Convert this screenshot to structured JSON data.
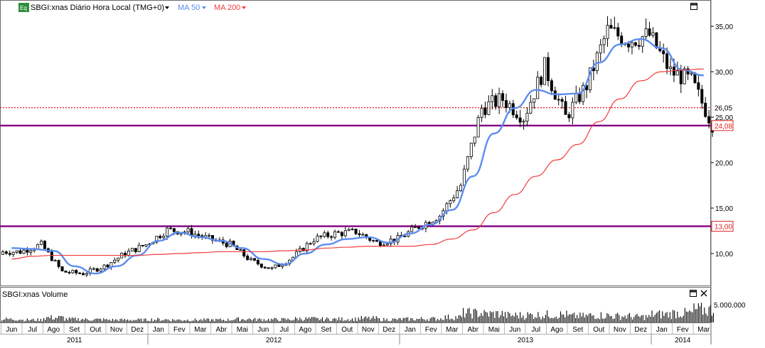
{
  "header": {
    "eq_badge": "Eq",
    "symbol_label": "SBGI:xnas Diário Hora Local (TMG+0)",
    "ma50_label": "MA 50",
    "ma200_label": "MA 200"
  },
  "volume_panel": {
    "title": "SBGI:xnas Volume",
    "tick_label": "5.000.000"
  },
  "colors": {
    "candle": "#000000",
    "ma50": "#5b8cf0",
    "ma200": "#f03c3c",
    "support_line": "#800080",
    "price_tag_red": "#e02020",
    "eq_badge": "#2d8f3c"
  },
  "chart_data": [
    {
      "type": "line",
      "title": "",
      "y_axis": {
        "ticks": [
          "10,00",
          "15,00",
          "20,00",
          "25,00",
          "30,00",
          "35,00"
        ],
        "range": [
          5.8,
          37.8
        ],
        "position": "right"
      },
      "x_axis": {
        "months": [
          "Jun",
          "Jul",
          "Ago",
          "Set",
          "Out",
          "Nov",
          "Dez",
          "Jan",
          "Fev",
          "Mar",
          "Abr",
          "Mai",
          "Jun",
          "Jul",
          "Ago",
          "Set",
          "Out",
          "Nov",
          "Dez",
          "Jan",
          "Fev",
          "Mar",
          "Abr",
          "Mai",
          "Jun",
          "Jul",
          "Ago",
          "Set",
          "Out",
          "Nov",
          "Dez",
          "Jan",
          "Fev",
          "Mar"
        ],
        "years": [
          "2011",
          "2012",
          "2013",
          "2014"
        ]
      },
      "price_months": [
        {
          "month": "Jun 2011",
          "close": 10.2
        },
        {
          "month": "Jul 2011",
          "close": 11.0
        },
        {
          "month": "Ago 2011",
          "close": 8.0
        },
        {
          "month": "Set 2011",
          "close": 7.8
        },
        {
          "month": "Out 2011",
          "close": 8.6
        },
        {
          "month": "Nov 2011",
          "close": 10.0
        },
        {
          "month": "Dez 2011",
          "close": 11.0
        },
        {
          "month": "Jan 2012",
          "close": 12.6
        },
        {
          "month": "Fev 2012",
          "close": 12.4
        },
        {
          "month": "Mar 2012",
          "close": 11.6
        },
        {
          "month": "Abr 2012",
          "close": 11.0
        },
        {
          "month": "Mai 2012",
          "close": 9.2
        },
        {
          "month": "Jun 2012",
          "close": 8.3
        },
        {
          "month": "Jul 2012",
          "close": 9.6
        },
        {
          "month": "Ago 2012",
          "close": 11.6
        },
        {
          "month": "Set 2012",
          "close": 12.2
        },
        {
          "month": "Out 2012",
          "close": 12.4
        },
        {
          "month": "Nov 2012",
          "close": 11.2
        },
        {
          "month": "Dez 2012",
          "close": 11.6
        },
        {
          "month": "Jan 2013",
          "close": 13.0
        },
        {
          "month": "Fev 2013",
          "close": 14.2
        },
        {
          "month": "Mar 2013",
          "close": 17.5
        },
        {
          "month": "Abr 2013",
          "close": 26.0
        },
        {
          "month": "Mai 2013",
          "close": 27.0
        },
        {
          "month": "Jun 2013",
          "close": 25.0
        },
        {
          "month": "Jul 2013",
          "close": 30.5
        },
        {
          "month": "Ago 2013",
          "close": 25.0
        },
        {
          "month": "Set 2013",
          "close": 28.5
        },
        {
          "month": "Out 2013",
          "close": 34.5
        },
        {
          "month": "Nov 2013",
          "close": 33.5
        },
        {
          "month": "Dez 2013",
          "close": 34.0
        },
        {
          "month": "Jan 2014",
          "close": 30.0
        },
        {
          "month": "Fev 2014",
          "close": 29.0
        },
        {
          "month": "Mar 2014",
          "close": 24.2
        }
      ],
      "series": [
        {
          "name": "MA 50",
          "values": [
            10.6,
            10.5,
            10.3,
            8.6,
            7.8,
            8.6,
            9.8,
            11.4,
            12.3,
            11.8,
            11.4,
            10.6,
            9.4,
            8.8,
            10.0,
            11.0,
            11.6,
            11.8,
            11.2,
            12.2,
            13.2,
            14.8,
            18.5,
            23.2,
            26.0,
            28.0,
            27.5,
            27.6,
            31.0,
            33.0,
            33.6,
            32.6,
            30.2,
            29.6
          ]
        },
        {
          "name": "MA 200",
          "values": [
            9.4,
            9.7,
            9.8,
            9.8,
            9.8,
            9.8,
            9.8,
            9.9,
            10.0,
            10.1,
            10.2,
            10.2,
            10.2,
            10.3,
            10.4,
            10.6,
            10.7,
            10.8,
            10.8,
            10.8,
            11.0,
            11.6,
            12.6,
            14.5,
            16.5,
            18.5,
            20.3,
            22.0,
            24.5,
            27.0,
            29.0,
            30.0,
            30.2,
            30.3
          ]
        }
      ],
      "horizontal_lines": [
        {
          "value": 24.08,
          "label": "24,08",
          "style": "solid"
        },
        {
          "value": 13.0,
          "label": "13,00",
          "style": "solid"
        },
        {
          "value": 26.05,
          "label": "26,05",
          "style": "dotted"
        }
      ]
    },
    {
      "type": "bar",
      "title": "SBGI:xnas Volume",
      "y_axis": {
        "ticks": [
          "5.000.000"
        ],
        "range": [
          0,
          8000000
        ]
      },
      "volume_months": [
        {
          "month": "Jun 2011",
          "volume": 900000
        },
        {
          "month": "Jul 2011",
          "volume": 700000
        },
        {
          "month": "Ago 2011",
          "volume": 1300000
        },
        {
          "month": "Set 2011",
          "volume": 900000
        },
        {
          "month": "Out 2011",
          "volume": 800000
        },
        {
          "month": "Nov 2011",
          "volume": 700000
        },
        {
          "month": "Dez 2011",
          "volume": 700000
        },
        {
          "month": "Jan 2012",
          "volume": 800000
        },
        {
          "month": "Fev 2012",
          "volume": 700000
        },
        {
          "month": "Mar 2012",
          "volume": 700000
        },
        {
          "month": "Abr 2012",
          "volume": 700000
        },
        {
          "month": "Mai 2012",
          "volume": 900000
        },
        {
          "month": "Jun 2012",
          "volume": 800000
        },
        {
          "month": "Jul 2012",
          "volume": 800000
        },
        {
          "month": "Ago 2012",
          "volume": 1000000
        },
        {
          "month": "Set 2012",
          "volume": 900000
        },
        {
          "month": "Out 2012",
          "volume": 900000
        },
        {
          "month": "Nov 2012",
          "volume": 1100000
        },
        {
          "month": "Dez 2012",
          "volume": 800000
        },
        {
          "month": "Jan 2013",
          "volume": 900000
        },
        {
          "month": "Fev 2013",
          "volume": 1000000
        },
        {
          "month": "Mar 2013",
          "volume": 1400000
        },
        {
          "month": "Abr 2013",
          "volume": 2500000
        },
        {
          "month": "Mai 2013",
          "volume": 2300000
        },
        {
          "month": "Jun 2013",
          "volume": 1900000
        },
        {
          "month": "Jul 2013",
          "volume": 2000000
        },
        {
          "month": "Ago 2013",
          "volume": 2100000
        },
        {
          "month": "Set 2013",
          "volume": 1700000
        },
        {
          "month": "Out 2013",
          "volume": 1900000
        },
        {
          "month": "Nov 2013",
          "volume": 1700000
        },
        {
          "month": "Dez 2013",
          "volume": 1500000
        },
        {
          "month": "Jan 2014",
          "volume": 2200000
        },
        {
          "month": "Fev 2014",
          "volume": 2500000
        },
        {
          "month": "Mar 2014",
          "volume": 3400000
        }
      ]
    }
  ]
}
